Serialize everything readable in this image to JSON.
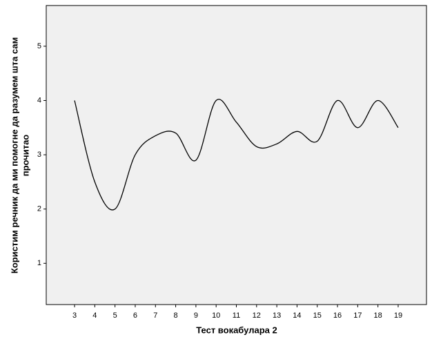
{
  "chart_data": {
    "type": "line",
    "x_label": "Тест вокабулара 2",
    "y_label": [
      "Користим речник да ми помогне да разумем шта сам",
      "прочитао"
    ],
    "x": [
      3,
      4,
      5,
      6,
      7,
      8,
      9,
      10,
      11,
      12,
      13,
      14,
      15,
      16,
      17,
      18,
      19
    ],
    "series": [
      {
        "color": "#000000",
        "values": [
          4.0,
          2.5,
          2.0,
          3.0,
          3.35,
          3.4,
          2.9,
          4.0,
          3.6,
          3.15,
          3.2,
          3.43,
          3.25,
          4.0,
          3.5,
          4.0,
          3.5
        ]
      }
    ],
    "xlim": [
      1.6,
      20.4
    ],
    "xticks": [
      3,
      4,
      5,
      6,
      7,
      8,
      9,
      10,
      11,
      12,
      13,
      14,
      15,
      16,
      17,
      18,
      19
    ],
    "ylim": [
      0.24,
      5.75
    ],
    "yticks": [
      1,
      2,
      3,
      4,
      5
    ],
    "grid": false
  }
}
